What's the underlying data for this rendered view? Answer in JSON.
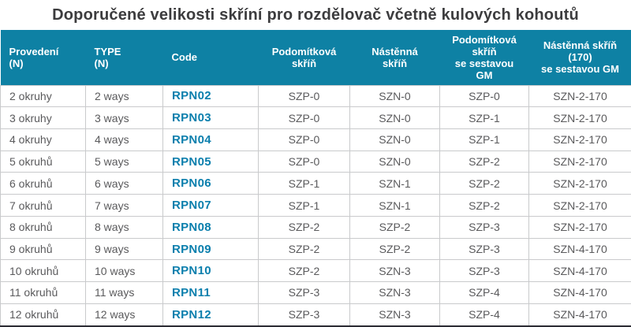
{
  "title": "Doporučené velikosti skříní pro rozdělovač včetně kulových kohoutů",
  "colors": {
    "header_bg": "#0e81a4",
    "code_text": "#0b7fad",
    "body_text": "#5a5a5c",
    "title_text": "#3c3c3e",
    "grid_line": "#c9cacc",
    "bottom_border": "#2c2c34"
  },
  "table": {
    "columns": [
      {
        "id": "provedeni",
        "label": "Provedení\n(N)",
        "align": "left"
      },
      {
        "id": "type",
        "label": "TYPE\n(N)",
        "align": "left"
      },
      {
        "id": "code",
        "label": "Code",
        "align": "left"
      },
      {
        "id": "podomitkova",
        "label": "Podomítková\nskříň",
        "align": "center"
      },
      {
        "id": "nastenna",
        "label": "Nástěnná\nskříň",
        "align": "center"
      },
      {
        "id": "podomitkova-gm",
        "label": "Podomítková\nskříň\nse sestavou\nGM",
        "align": "center"
      },
      {
        "id": "nastenna-170-gm",
        "label": "Nástěnná skříň\n(170)\nse sestavou GM",
        "align": "center"
      }
    ],
    "rows": [
      [
        "2 okruhy",
        "2 ways",
        "RPN02",
        "SZP-0",
        "SZN-0",
        "SZP-0",
        "SZN-2-170"
      ],
      [
        "3 okruhy",
        "3 ways",
        "RPN03",
        "SZP-0",
        "SZN-0",
        "SZP-1",
        "SZN-2-170"
      ],
      [
        "4 okruhy",
        "4 ways",
        "RPN04",
        "SZP-0",
        "SZN-0",
        "SZP-1",
        "SZN-2-170"
      ],
      [
        "5 okruhů",
        "5 ways",
        "RPN05",
        "SZP-0",
        "SZN-0",
        "SZP-2",
        "SZN-2-170"
      ],
      [
        "6 okruhů",
        "6 ways",
        "RPN06",
        "SZP-1",
        "SZN-1",
        "SZP-2",
        "SZN-2-170"
      ],
      [
        "7 okruhů",
        "7 ways",
        "RPN07",
        "SZP-1",
        "SZN-1",
        "SZP-2",
        "SZN-2-170"
      ],
      [
        "8 okruhů",
        "8 ways",
        "RPN08",
        "SZP-2",
        "SZP-2",
        "SZP-3",
        "SZN-2-170"
      ],
      [
        "9 okruhů",
        "9 ways",
        "RPN09",
        "SZP-2",
        "SZP-2",
        "SZP-3",
        "SZN-4-170"
      ],
      [
        "10 okruhů",
        "10 ways",
        "RPN10",
        "SZP-2",
        "SZN-3",
        "SZP-3",
        "SZN-4-170"
      ],
      [
        "11 okruhů",
        "11 ways",
        "RPN11",
        "SZP-3",
        "SZN-3",
        "SZP-4",
        "SZN-4-170"
      ],
      [
        "12 okruhů",
        "12 ways",
        "RPN12",
        "SZP-3",
        "SZN-3",
        "SZP-4",
        "SZN-4-170"
      ]
    ]
  }
}
